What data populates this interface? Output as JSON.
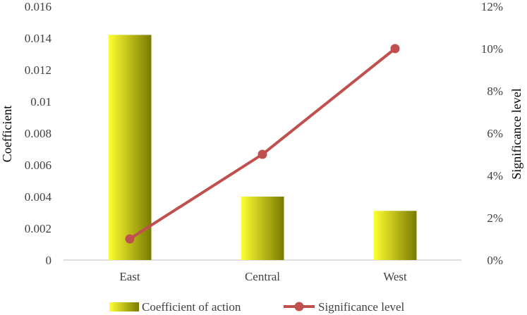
{
  "chart_data": {
    "type": "bar",
    "title": "",
    "categories": [
      "East",
      "Central",
      "West"
    ],
    "series": [
      {
        "name": "Coefficient of action",
        "type": "bar",
        "axis": "left",
        "values": [
          0.0142,
          0.004,
          0.0031
        ]
      },
      {
        "name": "Significance level",
        "type": "line",
        "axis": "right",
        "values": [
          0.01,
          0.05,
          0.1
        ]
      }
    ],
    "ylabel": "Coefficient",
    "ylim": [
      0,
      0.016
    ],
    "yticks": [
      "0",
      "0.002",
      "0.004",
      "0.006",
      "0.008",
      "0.01",
      "0.012",
      "0.014",
      "0.016"
    ],
    "y2label": "Significance level",
    "y2lim": [
      0,
      0.12
    ],
    "y2ticks": [
      "0%",
      "2%",
      "4%",
      "6%",
      "8%",
      "10%",
      "12%"
    ],
    "grid": false,
    "legend": "bottom",
    "colors": {
      "bar_light": "#ffff33",
      "bar_dark": "#7a7a00",
      "line": "#c0504d",
      "axis": "#bfbfbf"
    }
  }
}
